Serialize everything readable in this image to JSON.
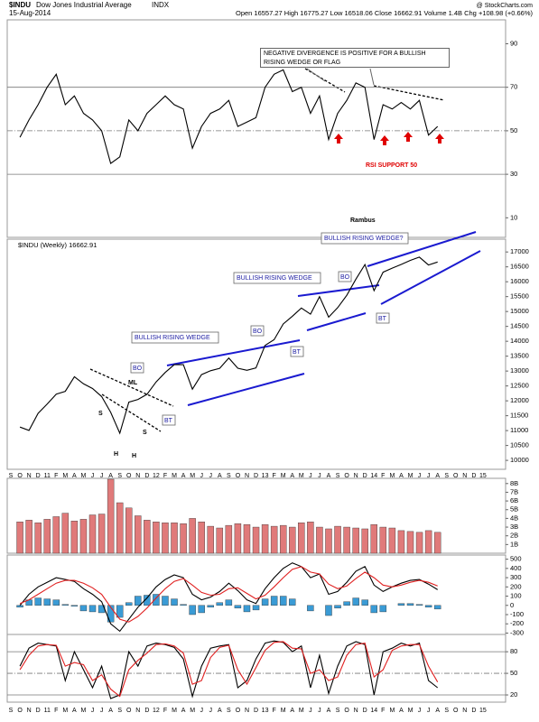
{
  "header": {
    "symbol": "$INDU",
    "name": "Dow Jones Industrial Average",
    "exchange": "INDX",
    "date": "15-Aug-2014",
    "quote": "Open 16557.27  High 16775.27  Low 16518.06  Close 16662.91  Volume 1.4B  Chg +108.98 (+0.66%)",
    "source": "@ StockCharts.com"
  },
  "chart_data": [
    {
      "type": "line",
      "color": "#000000",
      "ylim": [
        1,
        101
      ],
      "yticks": [
        90,
        70,
        50,
        30,
        10
      ],
      "hlines": [
        {
          "value": 70,
          "style": "solid"
        },
        {
          "value": 50,
          "style": "dashdot"
        },
        {
          "value": 30,
          "style": "solid"
        }
      ],
      "annotations": [
        "NEGATIVE DIVERGENCE IS POSITIVE FOR A BULLISH RISING WEDGE OR FLAG",
        "RSI SUPPORT 50",
        "Rambus"
      ],
      "x": [
        "2010-10",
        "2010-11",
        "2010-12",
        "2011-01",
        "2011-02",
        "2011-03",
        "2011-04",
        "2011-05",
        "2011-06",
        "2011-07",
        "2011-08",
        "2011-09",
        "2011-10",
        "2011-11",
        "2011-12",
        "2012-01",
        "2012-02",
        "2012-03",
        "2012-04",
        "2012-05",
        "2012-06",
        "2012-07",
        "2012-08",
        "2012-09",
        "2012-10",
        "2012-11",
        "2012-12",
        "2013-01",
        "2013-02",
        "2013-03",
        "2013-04",
        "2013-05",
        "2013-06",
        "2013-07",
        "2013-08",
        "2013-09",
        "2013-10",
        "2013-11",
        "2013-12",
        "2014-01",
        "2014-02",
        "2014-03",
        "2014-04",
        "2014-05",
        "2014-06",
        "2014-07",
        "2014-08"
      ],
      "values": [
        47,
        55,
        62,
        70,
        76,
        62,
        66,
        58,
        55,
        50,
        35,
        38,
        55,
        50,
        58,
        62,
        66,
        62,
        60,
        42,
        52,
        58,
        60,
        64,
        52,
        54,
        56,
        70,
        76,
        78,
        68,
        70,
        58,
        66,
        46,
        58,
        64,
        72,
        70,
        46,
        62,
        60,
        63,
        60,
        64,
        48,
        52
      ]
    },
    {
      "type": "line",
      "title": "$INDU (Weekly) 16662.91",
      "color": "#000000",
      "ylim": [
        9700,
        17430
      ],
      "yticks": [
        10000,
        10500,
        11000,
        11500,
        12000,
        12500,
        13000,
        13500,
        14000,
        14500,
        15000,
        15500,
        16000,
        16500,
        17000
      ],
      "xlim": [
        "2010-09",
        "2015-02"
      ],
      "xticks": [
        {
          "value": "2010-09",
          "label": "S"
        },
        {
          "value": "2010-10",
          "label": "O"
        },
        {
          "value": "2010-11",
          "label": "N"
        },
        {
          "value": "2010-12",
          "label": "D"
        },
        {
          "value": "2011-01",
          "label": "11"
        },
        {
          "value": "2011-02",
          "label": "F"
        },
        {
          "value": "2011-03",
          "label": "M"
        },
        {
          "value": "2011-04",
          "label": "A"
        },
        {
          "value": "2011-05",
          "label": "M"
        },
        {
          "value": "2011-06",
          "label": "J"
        },
        {
          "value": "2011-07",
          "label": "J"
        },
        {
          "value": "2011-08",
          "label": "A"
        },
        {
          "value": "2011-09",
          "label": "S"
        },
        {
          "value": "2011-10",
          "label": "O"
        },
        {
          "value": "2011-11",
          "label": "N"
        },
        {
          "value": "2011-12",
          "label": "D"
        },
        {
          "value": "2012-01",
          "label": "12"
        },
        {
          "value": "2012-02",
          "label": "F"
        },
        {
          "value": "2012-03",
          "label": "M"
        },
        {
          "value": "2012-04",
          "label": "A"
        },
        {
          "value": "2012-05",
          "label": "M"
        },
        {
          "value": "2012-06",
          "label": "J"
        },
        {
          "value": "2012-07",
          "label": "J"
        },
        {
          "value": "2012-08",
          "label": "A"
        },
        {
          "value": "2012-09",
          "label": "S"
        },
        {
          "value": "2012-10",
          "label": "O"
        },
        {
          "value": "2012-11",
          "label": "N"
        },
        {
          "value": "2012-12",
          "label": "D"
        },
        {
          "value": "2013-01",
          "label": "13"
        },
        {
          "value": "2013-02",
          "label": "F"
        },
        {
          "value": "2013-03",
          "label": "M"
        },
        {
          "value": "2013-04",
          "label": "A"
        },
        {
          "value": "2013-05",
          "label": "M"
        },
        {
          "value": "2013-06",
          "label": "J"
        },
        {
          "value": "2013-07",
          "label": "J"
        },
        {
          "value": "2013-08",
          "label": "A"
        },
        {
          "value": "2013-09",
          "label": "S"
        },
        {
          "value": "2013-10",
          "label": "O"
        },
        {
          "value": "2013-11",
          "label": "N"
        },
        {
          "value": "2013-12",
          "label": "D"
        },
        {
          "value": "2014-01",
          "label": "14"
        },
        {
          "value": "2014-02",
          "label": "F"
        },
        {
          "value": "2014-03",
          "label": "M"
        },
        {
          "value": "2014-04",
          "label": "A"
        },
        {
          "value": "2014-05",
          "label": "M"
        },
        {
          "value": "2014-06",
          "label": "J"
        },
        {
          "value": "2014-07",
          "label": "J"
        },
        {
          "value": "2014-08",
          "label": "A"
        },
        {
          "value": "2014-09",
          "label": "S"
        },
        {
          "value": "2014-10",
          "label": "O"
        },
        {
          "value": "2014-11",
          "label": "N"
        },
        {
          "value": "2014-12",
          "label": "D"
        },
        {
          "value": "2015-01",
          "label": "15"
        }
      ],
      "annotations": [
        "BULLISH RISING WEDGE?",
        "BULLISH RISING WEDGE",
        "BULLISH RISING WEDGE",
        "BO",
        "BO",
        "BO",
        "BT",
        "BT",
        "BT",
        "ML",
        "S",
        "S",
        "H",
        "H"
      ],
      "x": [
        "2010-10",
        "2010-11",
        "2010-12",
        "2011-01",
        "2011-02",
        "2011-03",
        "2011-04",
        "2011-05",
        "2011-06",
        "2011-07",
        "2011-08",
        "2011-09",
        "2011-10",
        "2011-11",
        "2011-12",
        "2012-01",
        "2012-02",
        "2012-03",
        "2012-04",
        "2012-05",
        "2012-06",
        "2012-07",
        "2012-08",
        "2012-09",
        "2012-10",
        "2012-11",
        "2012-12",
        "2013-01",
        "2013-02",
        "2013-03",
        "2013-04",
        "2013-05",
        "2013-06",
        "2013-07",
        "2013-08",
        "2013-09",
        "2013-10",
        "2013-11",
        "2013-12",
        "2014-01",
        "2014-02",
        "2014-03",
        "2014-04",
        "2014-05",
        "2014-06",
        "2014-07",
        "2014-08"
      ],
      "values": [
        11118,
        11006,
        11578,
        11892,
        12226,
        12320,
        12811,
        12570,
        12414,
        12143,
        11614,
        10913,
        11955,
        12046,
        12218,
        12633,
        12952,
        13212,
        13214,
        12393,
        12880,
        13009,
        13091,
        13437,
        13096,
        13026,
        13104,
        13861,
        14054,
        14579,
        14840,
        15116,
        14910,
        15500,
        14810,
        15130,
        15546,
        16086,
        16577,
        15699,
        16322,
        16458,
        16581,
        16717,
        16827,
        16563,
        16663
      ]
    },
    {
      "type": "bar",
      "color": "#e07a7a",
      "ylim": [
        0,
        8.6
      ],
      "yticks": [
        {
          "value": 1,
          "label": "1B"
        },
        {
          "value": 2,
          "label": "2B"
        },
        {
          "value": 3,
          "label": "3B"
        },
        {
          "value": 4,
          "label": "4B"
        },
        {
          "value": 5,
          "label": "5B"
        },
        {
          "value": 6,
          "label": "6B"
        },
        {
          "value": 7,
          "label": "7B"
        },
        {
          "value": 8,
          "label": "8B"
        }
      ],
      "x": [
        "2010-10",
        "2010-11",
        "2010-12",
        "2011-01",
        "2011-02",
        "2011-03",
        "2011-04",
        "2011-05",
        "2011-06",
        "2011-07",
        "2011-08",
        "2011-09",
        "2011-10",
        "2011-11",
        "2011-12",
        "2012-01",
        "2012-02",
        "2012-03",
        "2012-04",
        "2012-05",
        "2012-06",
        "2012-07",
        "2012-08",
        "2012-09",
        "2012-10",
        "2012-11",
        "2012-12",
        "2013-01",
        "2013-02",
        "2013-03",
        "2013-04",
        "2013-05",
        "2013-06",
        "2013-07",
        "2013-08",
        "2013-09",
        "2013-10",
        "2013-11",
        "2013-12",
        "2014-01",
        "2014-02",
        "2014-03",
        "2014-04",
        "2014-05",
        "2014-06",
        "2014-07",
        "2014-08"
      ],
      "values": [
        3.6,
        3.8,
        3.5,
        3.9,
        4.2,
        4.6,
        3.7,
        3.9,
        4.4,
        4.5,
        8.5,
        5.8,
        5.2,
        4.3,
        3.8,
        3.6,
        3.5,
        3.5,
        3.4,
        4.0,
        3.6,
        3.1,
        2.9,
        3.2,
        3.4,
        3.3,
        3.0,
        3.3,
        3.1,
        3.2,
        3.0,
        3.5,
        3.6,
        3.0,
        2.8,
        3.1,
        3.0,
        2.9,
        2.8,
        3.3,
        3.0,
        2.9,
        2.6,
        2.5,
        2.4,
        2.6,
        2.4
      ]
    },
    {
      "type": "combo",
      "ylim": [
        -315,
        545
      ],
      "yticks": [
        500,
        400,
        300,
        200,
        100,
        0,
        -100,
        -200,
        -300
      ],
      "x": [
        "2010-10",
        "2010-11",
        "2010-12",
        "2011-01",
        "2011-02",
        "2011-03",
        "2011-04",
        "2011-05",
        "2011-06",
        "2011-07",
        "2011-08",
        "2011-09",
        "2011-10",
        "2011-11",
        "2011-12",
        "2012-01",
        "2012-02",
        "2012-03",
        "2012-04",
        "2012-05",
        "2012-06",
        "2012-07",
        "2012-08",
        "2012-09",
        "2012-10",
        "2012-11",
        "2012-12",
        "2013-01",
        "2013-02",
        "2013-03",
        "2013-04",
        "2013-05",
        "2013-06",
        "2013-07",
        "2013-08",
        "2013-09",
        "2013-10",
        "2013-11",
        "2013-12",
        "2014-01",
        "2014-02",
        "2014-03",
        "2014-04",
        "2014-05",
        "2014-06",
        "2014-07",
        "2014-08"
      ],
      "series": [
        {
          "kind": "bar",
          "color": "#3a9bd5",
          "values": [
            -20,
            60,
            80,
            70,
            60,
            10,
            -10,
            -60,
            -70,
            -80,
            -180,
            -130,
            30,
            100,
            110,
            120,
            100,
            70,
            10,
            -100,
            -80,
            -20,
            30,
            60,
            -30,
            -70,
            -50,
            70,
            100,
            100,
            70,
            0,
            -60,
            0,
            -110,
            -30,
            40,
            80,
            60,
            -80,
            -70,
            0,
            20,
            20,
            10,
            -20,
            -40
          ]
        },
        {
          "kind": "line",
          "color": "#000000",
          "values": [
            0,
            120,
            200,
            250,
            300,
            280,
            260,
            180,
            120,
            40,
            -200,
            -280,
            -150,
            -20,
            80,
            200,
            280,
            330,
            300,
            120,
            60,
            90,
            150,
            240,
            160,
            60,
            20,
            180,
            300,
            400,
            460,
            420,
            300,
            340,
            120,
            150,
            250,
            370,
            420,
            220,
            150,
            200,
            240,
            270,
            280,
            230,
            170
          ]
        },
        {
          "kind": "line",
          "color": "#e02020",
          "values": [
            20,
            60,
            120,
            180,
            240,
            270,
            270,
            240,
            190,
            120,
            -20,
            -150,
            -180,
            -120,
            -30,
            80,
            180,
            260,
            290,
            220,
            140,
            110,
            120,
            180,
            190,
            130,
            70,
            110,
            200,
            300,
            390,
            420,
            360,
            340,
            230,
            180,
            210,
            290,
            360,
            300,
            220,
            200,
            220,
            250,
            270,
            250,
            210
          ]
        }
      ]
    },
    {
      "type": "line",
      "ylim": [
        10,
        104
      ],
      "yticks": [
        80,
        50,
        20
      ],
      "hlines": [
        {
          "value": 80,
          "style": "solid"
        },
        {
          "value": 50,
          "style": "dashdot"
        },
        {
          "value": 20,
          "style": "solid"
        }
      ],
      "x": [
        "2010-10",
        "2010-11",
        "2010-12",
        "2011-01",
        "2011-02",
        "2011-03",
        "2011-04",
        "2011-05",
        "2011-06",
        "2011-07",
        "2011-08",
        "2011-09",
        "2011-10",
        "2011-11",
        "2011-12",
        "2012-01",
        "2012-02",
        "2012-03",
        "2012-04",
        "2012-05",
        "2012-06",
        "2012-07",
        "2012-08",
        "2012-09",
        "2012-10",
        "2012-11",
        "2012-12",
        "2013-01",
        "2013-02",
        "2013-03",
        "2013-04",
        "2013-05",
        "2013-06",
        "2013-07",
        "2013-08",
        "2013-09",
        "2013-10",
        "2013-11",
        "2013-12",
        "2014-01",
        "2014-02",
        "2014-03",
        "2014-04",
        "2014-05",
        "2014-06",
        "2014-07",
        "2014-08"
      ],
      "series": [
        {
          "color": "#000000",
          "values": [
            60,
            85,
            92,
            90,
            88,
            40,
            80,
            55,
            30,
            60,
            15,
            20,
            80,
            60,
            88,
            92,
            90,
            86,
            70,
            18,
            60,
            85,
            88,
            90,
            30,
            40,
            70,
            92,
            95,
            93,
            80,
            88,
            30,
            75,
            22,
            60,
            88,
            94,
            90,
            20,
            80,
            85,
            92,
            88,
            92,
            40,
            30
          ]
        },
        {
          "color": "#e02020",
          "values": [
            55,
            75,
            88,
            90,
            89,
            60,
            65,
            62,
            40,
            48,
            28,
            18,
            55,
            68,
            78,
            90,
            91,
            88,
            78,
            35,
            40,
            72,
            86,
            89,
            55,
            35,
            58,
            82,
            93,
            94,
            85,
            84,
            50,
            55,
            40,
            45,
            75,
            90,
            92,
            45,
            55,
            82,
            88,
            90,
            90,
            60,
            38
          ]
        }
      ]
    }
  ]
}
